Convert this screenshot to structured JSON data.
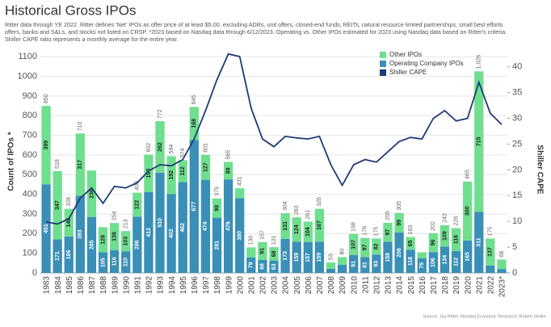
{
  "chart_data": {
    "type": "bar",
    "title": "Historical Gross IPOs",
    "subtitle_lines": [
      "Ritter data through YE 2022. Ritter defines 'Net' IPOs as offer price of at least $5.00, excluding ADRs, unit offers, closed-end funds, REITs, natural resource limited partnerships, small best efforts",
      "offers, banks and S&Ls, and stocks not listed on CRSP. *2023 based on Nasdaq data through 6/12/2023. Operating vs. Other IPOs estimated for 2023 using Nasdaq data based on Ritter's criteria.",
      "Shiller CAPE ratio represents a monthly average for the entire year."
    ],
    "ylabel": "Count of IPOs *",
    "y2label": "Shiller CAPE",
    "source": "Source: Jay Ritter, Nasdaq Economic Research, Robert Shiller",
    "categories": [
      "1983",
      "1984",
      "1985",
      "1986",
      "1987",
      "1988",
      "1989",
      "1990",
      "1991",
      "1992",
      "1993",
      "1994",
      "1995",
      "1996",
      "1997",
      "1998",
      "1999",
      "2000",
      "2001",
      "2002",
      "2003",
      "2004",
      "2005",
      "2006",
      "2007",
      "2008",
      "2009",
      "2010",
      "2011",
      "2012",
      "2013",
      "2014",
      "2015",
      "2016",
      "2017",
      "2018",
      "2019",
      "2020",
      "2021",
      "2022",
      "2023*"
    ],
    "series": [
      {
        "name": "Operating Company IPOs",
        "color": "#3a8fb7",
        "values": [
          451,
          171,
          186,
          393,
          285,
          105,
          116,
          110,
          286,
          412,
          510,
          402,
          462,
          677,
          474,
          281,
          476,
          380,
          79,
          66,
          63,
          173,
          159,
          157,
          159,
          21,
          41,
          91,
          81,
          93,
          158,
          206,
          118,
          75,
          106,
          134,
          112,
          165,
          311,
          38,
          20
        ]
      },
      {
        "name": "Other IPOs",
        "color": "#6fdf8f",
        "values": [
          399,
          347,
          140,
          317,
          236,
          128,
          138,
          103,
          122,
          190,
          262,
          192,
          112,
          168,
          127,
          98,
          89,
          51,
          51,
          91,
          68,
          131,
          124,
          104,
          167,
          32,
          39,
          107,
          97,
          82,
          97,
          99,
          65,
          30,
          96,
          109,
          116,
          300,
          715,
          137,
          48
        ]
      },
      {
        "name": "Shiller CAPE",
        "color": "#1f3a7a",
        "axis": "y2",
        "values": [
          9.9,
          9.5,
          10.5,
          14.5,
          16.5,
          13.5,
          16.8,
          16.5,
          17.5,
          19.8,
          21,
          20.8,
          22,
          26,
          31.5,
          37.5,
          42.5,
          42,
          32,
          26,
          24.5,
          26.5,
          26.2,
          26,
          26.5,
          21,
          17,
          21,
          22,
          21.5,
          23.5,
          25.5,
          26.3,
          26,
          30,
          31.5,
          29.5,
          30,
          37,
          31,
          28.8
        ]
      }
    ],
    "totals": [
      850,
      518,
      326,
      710,
      null,
      null,
      254,
      213,
      408,
      602,
      772,
      594,
      574,
      845,
      601,
      379,
      565,
      431,
      130,
      157,
      131,
      304,
      283,
      261,
      326,
      53,
      80,
      198,
      178,
      175,
      255,
      305,
      183,
      null,
      202,
      243,
      228,
      465,
      {
        "value": 1026,
        "label": "1,026"
      },
      175,
      68
    ],
    "ylim": [
      0,
      1130
    ],
    "yticks": [
      0,
      100,
      200,
      300,
      400,
      500,
      600,
      700,
      800,
      900,
      1000,
      1100
    ],
    "y2lim": [
      0,
      43.1
    ],
    "y2ticks": [
      0,
      5,
      10,
      15,
      20,
      25,
      30,
      35,
      40
    ],
    "grid": true,
    "legend": "upper right"
  }
}
